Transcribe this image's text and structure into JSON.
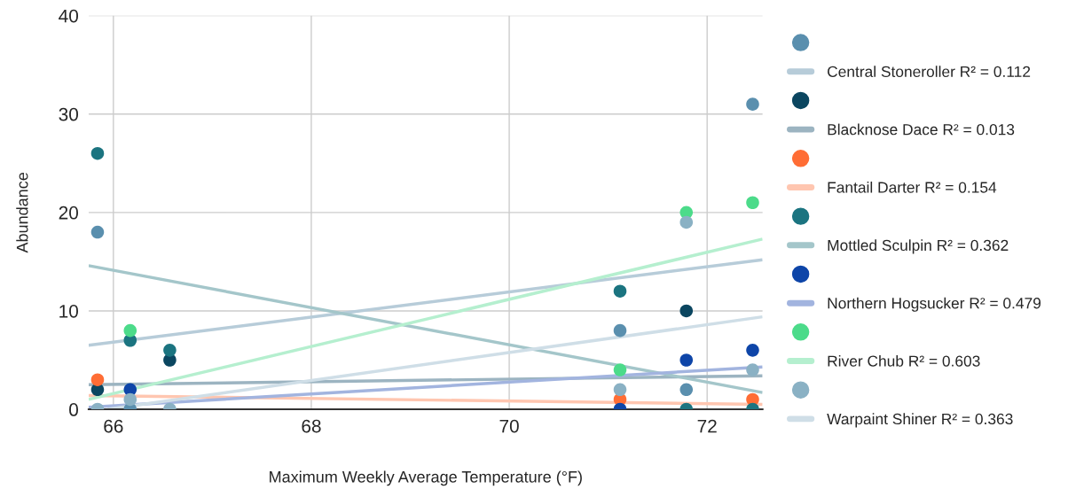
{
  "chart_data": {
    "type": "scatter",
    "xlabel": "Maximum Weekly Average Temperature (°F)",
    "ylabel": "Abundance",
    "xlim": [
      65.75,
      72.56
    ],
    "xticks": [
      66,
      68,
      70,
      72
    ],
    "ylim": [
      0,
      40
    ],
    "yticks": [
      0,
      10,
      20,
      30,
      40
    ],
    "grid": true,
    "legend": "right",
    "series": [
      {
        "color": "#5a8fae",
        "marker": "circle",
        "x": [
          65.84,
          66.17,
          71.12,
          71.79,
          72.46
        ],
        "values": [
          18,
          0,
          8,
          2,
          31
        ]
      },
      {
        "type": "line",
        "name": "Central Stoneroller R² = 0.112",
        "color": "#b7ccd9",
        "x": [
          65.75,
          72.56
        ],
        "values": [
          6.5,
          15.2
        ]
      },
      {
        "color": "#0b4660",
        "marker": "circle",
        "x": [
          65.84,
          66.57,
          71.79
        ],
        "values": [
          2,
          5,
          10
        ]
      },
      {
        "type": "line",
        "name": "Blacknose Dace R² = 0.013",
        "color": "#9cb4c1",
        "x": [
          65.75,
          72.56
        ],
        "values": [
          2.5,
          3.4
        ]
      },
      {
        "color": "#ff6d35",
        "marker": "circle",
        "x": [
          65.84,
          71.12,
          72.46
        ],
        "values": [
          3,
          1,
          1
        ]
      },
      {
        "type": "line",
        "name": "Fantail Darter R² = 0.154",
        "color": "#ffc6b0",
        "x": [
          65.75,
          72.56
        ],
        "values": [
          1.4,
          0.5
        ]
      },
      {
        "color": "#1b7480",
        "marker": "circle",
        "x": [
          65.84,
          66.17,
          66.57,
          71.12,
          71.79,
          72.46
        ],
        "values": [
          26,
          7,
          6,
          12,
          0,
          0
        ]
      },
      {
        "type": "line",
        "name": "Mottled Sculpin R² = 0.362",
        "color": "#a4c6ca",
        "x": [
          65.75,
          72.56
        ],
        "values": [
          14.6,
          1.7
        ]
      },
      {
        "color": "#0e45a8",
        "marker": "circle",
        "x": [
          66.17,
          71.12,
          71.79,
          72.46
        ],
        "values": [
          2,
          0,
          5,
          6
        ]
      },
      {
        "type": "line",
        "name": "Northern Hogsucker R² = 0.479",
        "color": "#a2b4df",
        "x": [
          65.75,
          72.56
        ],
        "values": [
          0.2,
          4.3
        ]
      },
      {
        "color": "#4cdb8a",
        "marker": "circle",
        "x": [
          66.17,
          71.12,
          71.79,
          72.46
        ],
        "values": [
          8,
          4,
          20,
          21
        ]
      },
      {
        "type": "line",
        "name": "River Chub R² = 0.603",
        "color": "#b5efcf",
        "x": [
          65.75,
          72.56
        ],
        "values": [
          1.0,
          17.3
        ]
      },
      {
        "color": "#8ab1c4",
        "marker": "circle",
        "x": [
          65.84,
          66.17,
          66.57,
          71.12,
          71.79,
          72.46
        ],
        "values": [
          0,
          1,
          0,
          2,
          19,
          4
        ]
      },
      {
        "type": "line",
        "name": "Warpaint Shiner R² = 0.363",
        "color": "#cfdee7",
        "x": [
          65.94,
          72.56
        ],
        "values": [
          0,
          9.4
        ]
      }
    ]
  }
}
